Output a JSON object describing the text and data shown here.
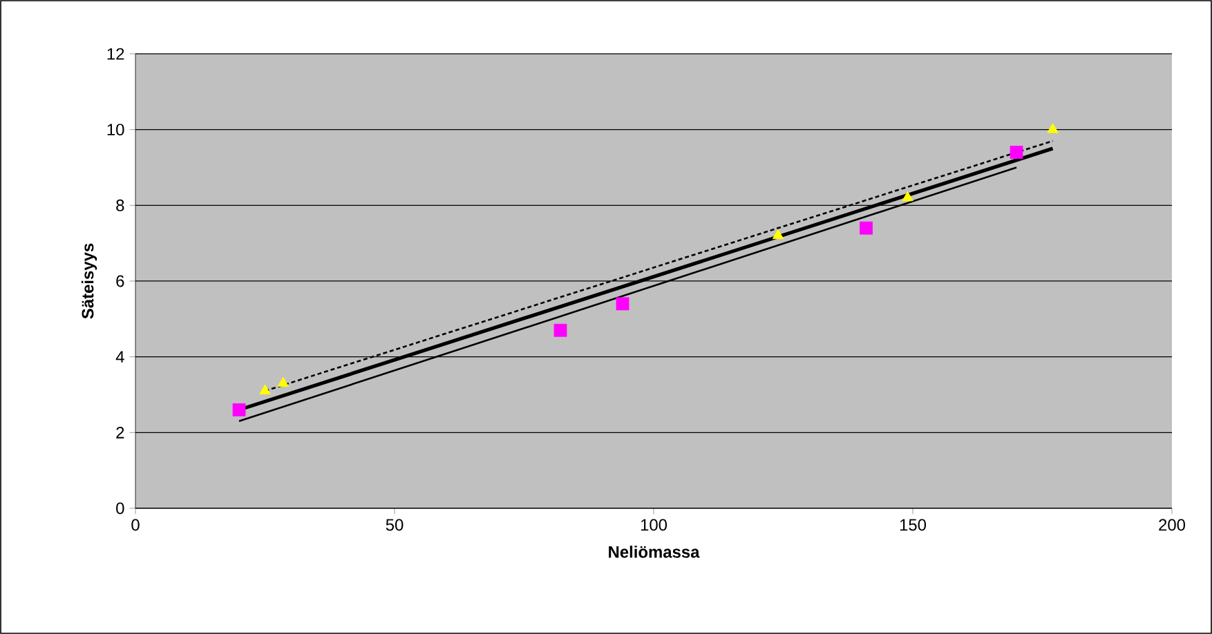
{
  "chart_data": {
    "type": "scatter",
    "xlabel": "Neliömassa",
    "ylabel": "Säteisyys",
    "xlim": [
      0,
      200
    ],
    "ylim": [
      0,
      12
    ],
    "xticks": [
      0,
      50,
      100,
      150,
      200
    ],
    "yticks": [
      0,
      2,
      4,
      6,
      8,
      10,
      12
    ],
    "grid": "y",
    "series": [
      {
        "marker": "square",
        "color": "#ff00ff",
        "x": [
          20,
          82,
          94,
          141,
          170
        ],
        "values": [
          2.6,
          4.7,
          5.4,
          7.4,
          9.4
        ]
      },
      {
        "marker": "triangle",
        "color": "#ffff00",
        "x": [
          25,
          28.5,
          124,
          149,
          177
        ],
        "values": [
          3.1,
          3.3,
          7.2,
          8.2,
          10.0
        ]
      },
      {
        "type": "line",
        "marker": "none",
        "line_style": "solid",
        "color": "#000000",
        "x": [
          20,
          170
        ],
        "values": [
          2.3,
          9.0
        ]
      },
      {
        "type": "line",
        "marker": "none",
        "line_style": "solid",
        "color": "#000000",
        "x": [
          20,
          177
        ],
        "values": [
          2.6,
          9.5
        ]
      },
      {
        "type": "line",
        "marker": "none",
        "line_style": "dotted",
        "color": "#000000",
        "x": [
          25,
          177
        ],
        "values": [
          3.1,
          9.7
        ]
      }
    ]
  }
}
